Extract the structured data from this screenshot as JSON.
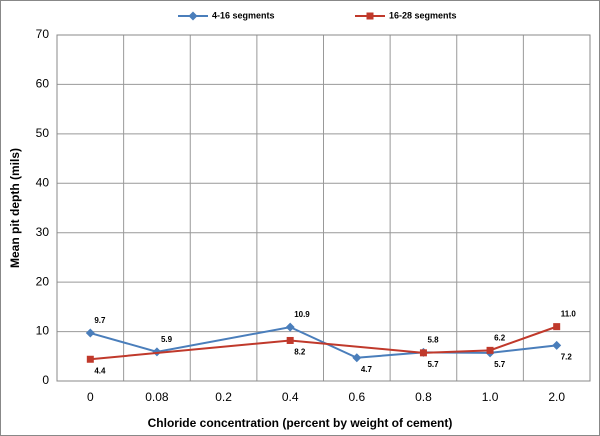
{
  "chart_data": {
    "type": "line",
    "x_label": "Chloride concentration (percent by weight of cement)",
    "y_label": "Mean pit depth (mils)",
    "categories": [
      "0",
      "0.08",
      "0.2",
      "0.4",
      "0.6",
      "0.8",
      "1.0",
      "2.0"
    ],
    "series": [
      {
        "name": "4-16 segments",
        "color": "#4a7ebb",
        "marker": "diamond",
        "values": [
          9.7,
          5.9,
          null,
          10.9,
          4.7,
          5.8,
          5.7,
          7.2
        ]
      },
      {
        "name": "16-28 segments",
        "color": "#c0392b",
        "marker": "square",
        "values": [
          4.4,
          null,
          null,
          8.2,
          null,
          5.7,
          6.2,
          11
        ],
        "value_labels": [
          "4.4",
          null,
          null,
          "8.2",
          null,
          "5.7",
          "6.2",
          "11.0"
        ]
      }
    ],
    "span_gaps": true,
    "ylim": [
      0,
      70
    ],
    "yticks": [
      0,
      10,
      20,
      30,
      40,
      50,
      60,
      70
    ],
    "grid": true,
    "legend": "top"
  }
}
